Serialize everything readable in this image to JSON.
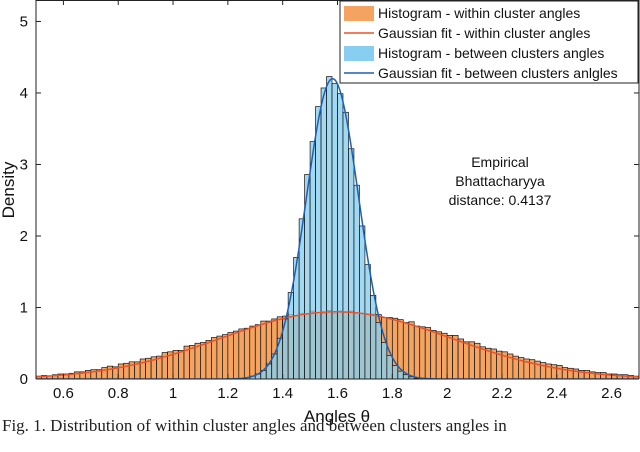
{
  "chart_data": {
    "type": "bar",
    "xlabel": "Angles θ",
    "ylabel": "Density",
    "xlim": [
      0.5,
      2.7
    ],
    "ylim": [
      0,
      5.3
    ],
    "xticks": [
      "0.6",
      "0.8",
      "1",
      "1.2",
      "1.4",
      "1.6",
      "1.8",
      "2",
      "2.2",
      "2.4",
      "2.6"
    ],
    "yticks": [
      "0",
      "1",
      "2",
      "3",
      "4",
      "5"
    ],
    "legend_position": "top-right",
    "legend": [
      {
        "label": "Histogram - within cluster angles",
        "kind": "patch",
        "color": "#f4a460"
      },
      {
        "label": "Gaussian fit - within cluster angles",
        "kind": "line",
        "color": "#e8532b"
      },
      {
        "label": "Histogram - between clusters angles",
        "kind": "patch",
        "color": "#87cef0"
      },
      {
        "label": "Gaussian fit - between clusters anlgles",
        "kind": "line",
        "color": "#1f5fb0"
      }
    ],
    "annotation": [
      "Empirical",
      "Bhattacharyya",
      "distance: 0.4137"
    ],
    "series": [
      {
        "name": "Histogram - within cluster angles",
        "kind": "histogram",
        "color": "#f4a460",
        "bin_width": 0.02,
        "x": [
          0.51,
          0.53,
          0.55,
          0.57,
          0.59,
          0.61,
          0.63,
          0.65,
          0.67,
          0.69,
          0.71,
          0.73,
          0.75,
          0.77,
          0.79,
          0.81,
          0.83,
          0.85,
          0.87,
          0.89,
          0.91,
          0.93,
          0.95,
          0.97,
          0.99,
          1.01,
          1.03,
          1.05,
          1.07,
          1.09,
          1.11,
          1.13,
          1.15,
          1.17,
          1.19,
          1.21,
          1.23,
          1.25,
          1.27,
          1.29,
          1.31,
          1.33,
          1.35,
          1.37,
          1.39,
          1.41,
          1.43,
          1.45,
          1.47,
          1.49,
          1.51,
          1.53,
          1.55,
          1.57,
          1.59,
          1.61,
          1.63,
          1.65,
          1.67,
          1.69,
          1.71,
          1.73,
          1.75,
          1.77,
          1.79,
          1.81,
          1.83,
          1.85,
          1.87,
          1.89,
          1.91,
          1.93,
          1.95,
          1.97,
          1.99,
          2.01,
          2.03,
          2.05,
          2.07,
          2.09,
          2.11,
          2.13,
          2.15,
          2.17,
          2.19,
          2.21,
          2.23,
          2.25,
          2.27,
          2.29,
          2.31,
          2.33,
          2.35,
          2.37,
          2.39,
          2.41,
          2.43,
          2.45,
          2.47,
          2.49,
          2.51,
          2.53,
          2.55,
          2.57,
          2.59,
          2.61,
          2.63,
          2.65,
          2.67,
          2.69
        ],
        "values": [
          0.04,
          0.05,
          0.04,
          0.06,
          0.07,
          0.07,
          0.08,
          0.1,
          0.1,
          0.12,
          0.13,
          0.13,
          0.16,
          0.18,
          0.17,
          0.21,
          0.22,
          0.24,
          0.24,
          0.28,
          0.29,
          0.31,
          0.32,
          0.37,
          0.38,
          0.4,
          0.4,
          0.46,
          0.47,
          0.5,
          0.51,
          0.54,
          0.58,
          0.6,
          0.62,
          0.65,
          0.67,
          0.7,
          0.71,
          0.74,
          0.76,
          0.81,
          0.81,
          0.84,
          0.87,
          0.88,
          0.9,
          0.89,
          0.92,
          0.91,
          0.95,
          0.93,
          0.92,
          0.96,
          0.92,
          0.95,
          0.93,
          0.95,
          0.92,
          0.92,
          0.9,
          0.91,
          0.9,
          0.86,
          0.86,
          0.85,
          0.83,
          0.79,
          0.8,
          0.74,
          0.73,
          0.72,
          0.68,
          0.66,
          0.64,
          0.61,
          0.61,
          0.56,
          0.52,
          0.52,
          0.5,
          0.45,
          0.43,
          0.42,
          0.39,
          0.38,
          0.35,
          0.32,
          0.3,
          0.28,
          0.27,
          0.25,
          0.23,
          0.21,
          0.2,
          0.19,
          0.16,
          0.15,
          0.14,
          0.12,
          0.12,
          0.1,
          0.09,
          0.09,
          0.07,
          0.07,
          0.06,
          0.06,
          0.05,
          0.04
        ]
      },
      {
        "name": "Gaussian fit - within cluster angles",
        "kind": "gaussian",
        "color": "#e8532b",
        "mean": 1.595,
        "std": 0.42,
        "peak": 0.94
      },
      {
        "name": "Histogram - between clusters angles",
        "kind": "histogram",
        "color": "#87cef0",
        "bin_width": 0.02,
        "x": [
          1.27,
          1.29,
          1.31,
          1.33,
          1.35,
          1.37,
          1.39,
          1.41,
          1.43,
          1.45,
          1.47,
          1.49,
          1.51,
          1.53,
          1.55,
          1.57,
          1.59,
          1.61,
          1.63,
          1.65,
          1.67,
          1.69,
          1.71,
          1.73,
          1.75,
          1.77,
          1.79,
          1.81,
          1.83,
          1.85,
          1.87,
          1.89,
          1.91
        ],
        "values": [
          0.02,
          0.04,
          0.07,
          0.12,
          0.21,
          0.35,
          0.57,
          0.84,
          1.21,
          1.7,
          2.24,
          2.86,
          3.32,
          3.81,
          4.07,
          4.23,
          4.13,
          3.99,
          3.73,
          3.22,
          2.71,
          2.14,
          1.6,
          1.17,
          0.79,
          0.51,
          0.33,
          0.19,
          0.11,
          0.06,
          0.03,
          0.01,
          0.0
        ]
      },
      {
        "name": "Gaussian fit - between clusters anlgles",
        "kind": "gaussian",
        "color": "#1f5fb0",
        "mean": 1.582,
        "std": 0.095,
        "peak": 4.2
      }
    ]
  },
  "caption": "Fig. 1.   Distribution of within cluster angles and between clusters angles in"
}
